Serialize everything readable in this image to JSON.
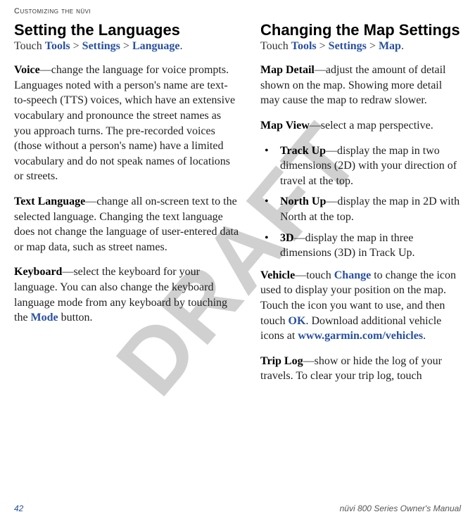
{
  "watermark": "DRAFT",
  "header": "Customizing the nüvi",
  "left": {
    "heading": "Setting the Languages",
    "breadcrumb_prefix": "Touch ",
    "bc1": "Tools",
    "bc2": "Settings",
    "bc3": "Language",
    "voice_label": "Voice",
    "voice_text": "—change the language for voice prompts. Languages noted with a person's name are text-to-speech (TTS) voices, which have an extensive vocabulary and pronounce the street names as you approach turns. The pre-recorded voices (those without a person's name) have a limited vocabulary and do not speak names of locations or streets.",
    "textlang_label": "Text Language",
    "textlang_text": "—change all on-screen text to the selected language. Changing the text language does not change the language of user-entered data or map data, such as street names.",
    "keyboard_label": "Keyboard",
    "keyboard_text1": "—select the keyboard for your language. You can also change the keyboard language mode from any keyboard by touching the ",
    "keyboard_mode": "Mode",
    "keyboard_text2": " button."
  },
  "right": {
    "heading": "Changing the Map Settings",
    "breadcrumb_prefix": "Touch ",
    "bc1": "Tools",
    "bc2": "Settings",
    "bc3": "Map",
    "mapdetail_label": "Map Detail",
    "mapdetail_text": "—adjust the amount of detail shown on the map. Showing more detail may cause the map to redraw slower.",
    "mapview_label": "Map View",
    "mapview_text": "—select a map perspective.",
    "bullets": {
      "b1_label": "Track Up",
      "b1_text": "—display the map in two dimensions (2D) with your direction of travel at the top.",
      "b2_label": "North Up",
      "b2_text": "—display the map in 2D with North at the top.",
      "b3_label": "3D",
      "b3_text": "—display the map in three dimensions (3D) in Track Up."
    },
    "vehicle_label": "Vehicle",
    "vehicle_text1": "—touch ",
    "vehicle_change": "Change",
    "vehicle_text2": " to change the icon used to display your position on the map. Touch the icon you want to use, and then touch ",
    "vehicle_ok": "OK",
    "vehicle_text3": ". Download additional vehicle icons at ",
    "vehicle_url": "www.garmin.com/vehicles",
    "vehicle_text4": ".",
    "triplog_label": "Trip Log",
    "triplog_text": "—show or hide the log of your travels. To clear your trip log, touch"
  },
  "footer": {
    "page": "42",
    "manual": "nüvi 800 Series Owner's Manual"
  }
}
